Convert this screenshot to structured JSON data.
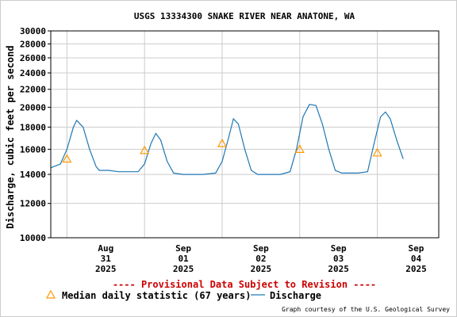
{
  "chart_data": {
    "type": "line",
    "title": "USGS 13334300 SNAKE RIVER NEAR ANATONE, WA",
    "ylabel": "Discharge, cubic feet per second",
    "xlabel": "",
    "y_scale": "log",
    "ylim": [
      10000,
      30000
    ],
    "y_ticks": [
      10000,
      12000,
      14000,
      16000,
      18000,
      20000,
      22000,
      24000,
      26000,
      28000,
      30000
    ],
    "y_tick_labels": [
      "10000",
      "12000",
      "14000",
      "16000",
      "18000",
      "20000",
      "22000",
      "24000",
      "26000",
      "28000",
      "30000"
    ],
    "xlim": [
      "2025-08-30 19:00",
      "2025-09-04 19:00"
    ],
    "x_ticks": [
      {
        "month": "Aug",
        "day": "31",
        "year": "2025",
        "date": "2025-08-31"
      },
      {
        "month": "Sep",
        "day": "01",
        "year": "2025",
        "date": "2025-09-01"
      },
      {
        "month": "Sep",
        "day": "02",
        "year": "2025",
        "date": "2025-09-02"
      },
      {
        "month": "Sep",
        "day": "03",
        "year": "2025",
        "date": "2025-09-03"
      },
      {
        "month": "Sep",
        "day": "04",
        "year": "2025",
        "date": "2025-09-04"
      }
    ],
    "grid": true,
    "series": [
      {
        "name": "Discharge",
        "color": "#1f77b4",
        "points": [
          [
            "2025-08-30 19:00",
            14500
          ],
          [
            "2025-08-30 22:00",
            14800
          ],
          [
            "2025-08-31 00:00",
            16000
          ],
          [
            "2025-08-31 02:00",
            18000
          ],
          [
            "2025-08-31 03:00",
            18650
          ],
          [
            "2025-08-31 05:00",
            18000
          ],
          [
            "2025-08-31 07:00",
            16000
          ],
          [
            "2025-08-31 09:00",
            14600
          ],
          [
            "2025-08-31 10:00",
            14300
          ],
          [
            "2025-08-31 13:00",
            14300
          ],
          [
            "2025-08-31 16:00",
            14200
          ],
          [
            "2025-08-31 19:00",
            14200
          ],
          [
            "2025-08-31 22:00",
            14200
          ],
          [
            "2025-09-01 00:00",
            14800
          ],
          [
            "2025-09-01 02:00",
            16500
          ],
          [
            "2025-09-01 03:30",
            17400
          ],
          [
            "2025-09-01 05:00",
            16800
          ],
          [
            "2025-09-01 07:00",
            15000
          ],
          [
            "2025-09-01 09:00",
            14100
          ],
          [
            "2025-09-01 12:00",
            14000
          ],
          [
            "2025-09-01 18:00",
            14000
          ],
          [
            "2025-09-01 22:00",
            14100
          ],
          [
            "2025-09-02 00:00",
            15000
          ],
          [
            "2025-09-02 02:00",
            17000
          ],
          [
            "2025-09-02 03:30",
            18800
          ],
          [
            "2025-09-02 05:00",
            18300
          ],
          [
            "2025-09-02 07:00",
            16000
          ],
          [
            "2025-09-02 09:00",
            14300
          ],
          [
            "2025-09-02 11:00",
            14000
          ],
          [
            "2025-09-02 18:00",
            14000
          ],
          [
            "2025-09-02 21:00",
            14200
          ],
          [
            "2025-09-02 23:00",
            16000
          ],
          [
            "2025-09-03 01:00",
            19000
          ],
          [
            "2025-09-03 03:00",
            20300
          ],
          [
            "2025-09-03 05:00",
            20200
          ],
          [
            "2025-09-03 07:00",
            18300
          ],
          [
            "2025-09-03 09:00",
            16000
          ],
          [
            "2025-09-03 11:00",
            14300
          ],
          [
            "2025-09-03 13:00",
            14100
          ],
          [
            "2025-09-03 18:00",
            14100
          ],
          [
            "2025-09-03 21:00",
            14200
          ],
          [
            "2025-09-03 23:00",
            16500
          ],
          [
            "2025-09-04 01:00",
            19000
          ],
          [
            "2025-09-04 02:30",
            19500
          ],
          [
            "2025-09-04 04:00",
            18800
          ],
          [
            "2025-09-04 06:00",
            16800
          ],
          [
            "2025-09-04 08:00",
            15200
          ]
        ]
      },
      {
        "name": "Median daily statistic (67 years)",
        "color": "#ff9900",
        "points": [
          [
            "2025-08-31 00:00",
            15200
          ],
          [
            "2025-09-01 00:00",
            15900
          ],
          [
            "2025-09-02 00:00",
            16500
          ],
          [
            "2025-09-03 00:00",
            16000
          ],
          [
            "2025-09-04 00:00",
            15700
          ]
        ]
      }
    ],
    "legend": [
      {
        "name": "Median daily statistic (67 years)",
        "symbol": "triangle"
      },
      {
        "name": "Discharge",
        "symbol": "line"
      }
    ],
    "legend_position": "bottom",
    "notice": "---- Provisional Data Subject to Revision ----",
    "credit": "Graph courtesy of the U.S. Geological Survey"
  }
}
